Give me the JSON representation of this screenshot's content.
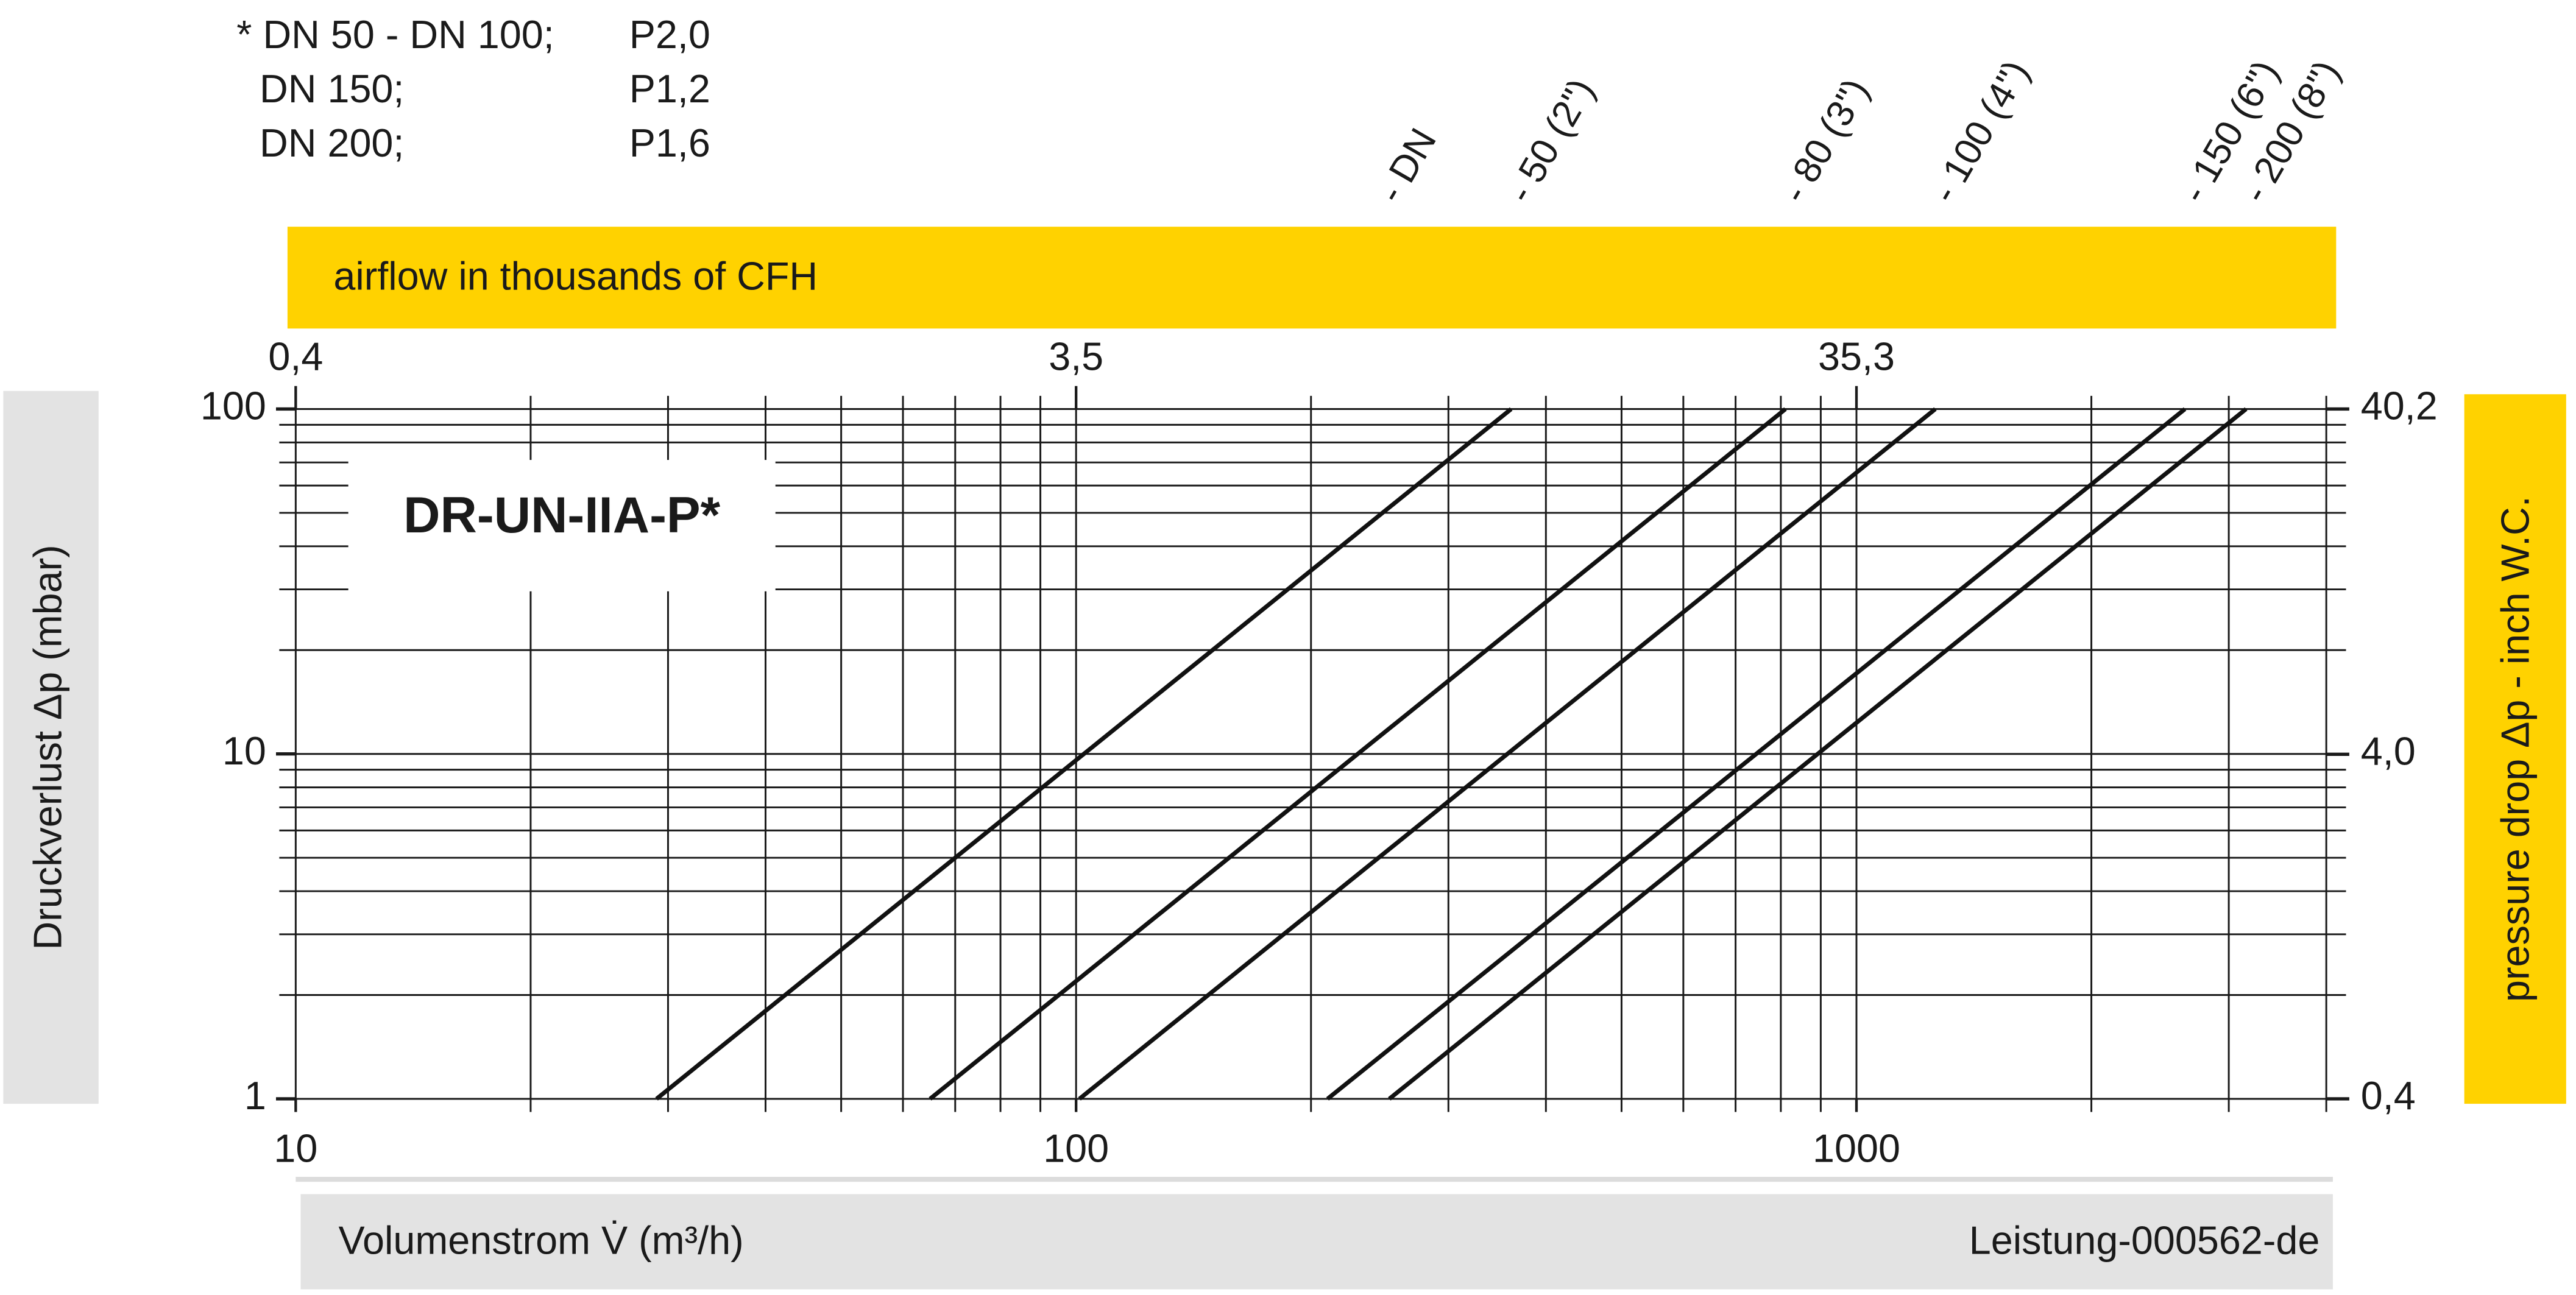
{
  "chart_data": {
    "type": "line",
    "title": "DR-UN-IIA-P*",
    "notes": [
      [
        "* DN 50 - DN 100;",
        "P2,0"
      ],
      [
        "DN 150;",
        "P1,2"
      ],
      [
        "DN 200;",
        "P1,6"
      ]
    ],
    "legend_title": "- DN",
    "xlabel": "Volumenstrom V̇ (m³/h)",
    "ylabel": "Druckverlust Δp (mbar)",
    "x2label": "airflow in thousands of CFH",
    "y2label": "pressure drop Δp - inch W.C.",
    "code": "Leistung-000562-de",
    "xlog": true,
    "ylog": true,
    "grid": true,
    "xlim": [
      10,
      4000
    ],
    "ylim": [
      1,
      100
    ],
    "xticks": [
      10,
      100,
      1000
    ],
    "yticks": [
      1,
      10,
      100
    ],
    "xgrid": [
      10,
      20,
      30,
      40,
      50,
      60,
      70,
      80,
      90,
      100,
      200,
      300,
      400,
      500,
      600,
      700,
      800,
      900,
      1000,
      2000,
      3000,
      4000
    ],
    "ygrid": [
      1,
      2,
      3,
      4,
      5,
      6,
      7,
      8,
      9,
      10,
      20,
      30,
      40,
      50,
      60,
      70,
      80,
      90,
      100
    ],
    "x2lim": [
      0.353,
      141.2
    ],
    "x2ticks": [
      {
        "value": 0.353,
        "label": "0,4"
      },
      {
        "value": 3.53,
        "label": "3,5"
      },
      {
        "value": 35.3,
        "label": "35,3"
      }
    ],
    "y2lim": [
      0.4,
      40.2
    ],
    "y2ticks": [
      {
        "value": 0.4,
        "label": "0,4"
      },
      {
        "value": 4.0,
        "label": "4,0"
      },
      {
        "value": 40.2,
        "label": "40,2"
      }
    ],
    "series": [
      {
        "name": "- 50 (2\")",
        "color": "#111111",
        "x": [
          29,
          361
        ],
        "values": [
          1,
          100
        ]
      },
      {
        "name": "- 80 (3\")",
        "color": "#111111",
        "x": [
          65,
          811
        ],
        "values": [
          1,
          100
        ]
      },
      {
        "name": "- 100 (4\")",
        "color": "#111111",
        "x": [
          101,
          1262
        ],
        "values": [
          1,
          100
        ]
      },
      {
        "name": "- 150 (6\")",
        "color": "#111111",
        "x": [
          210,
          2636
        ],
        "values": [
          1,
          100
        ]
      },
      {
        "name": "- 200 (8\")",
        "color": "#111111",
        "x": [
          252,
          3157
        ],
        "values": [
          1,
          100
        ]
      }
    ]
  }
}
